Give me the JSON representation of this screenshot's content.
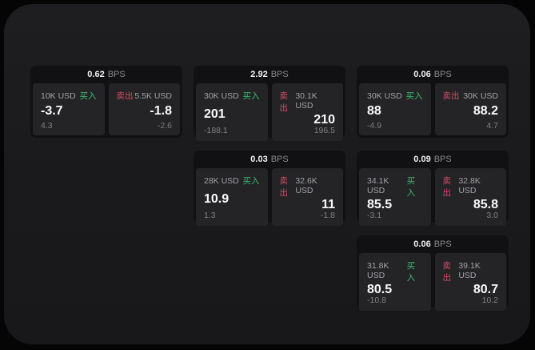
{
  "labels": {
    "bps_unit": "BPS",
    "buy": "买入",
    "sell": "卖出"
  },
  "colors": {
    "buy": "#3cba6e",
    "sell": "#d34c66",
    "window_bg": "#1b1b1d",
    "card_bg": "#111113",
    "panel_bg": "#242427"
  },
  "cards": [
    {
      "bps": "0.62",
      "buy": {
        "amount": "10K USD",
        "value": "-3.7",
        "sub": "4.3"
      },
      "sell": {
        "amount": "5.5K USD",
        "value": "-1.8",
        "sub": "-2.6"
      }
    },
    {
      "bps": "2.92",
      "buy": {
        "amount": "30K USD",
        "value": "201",
        "sub": "-188.1"
      },
      "sell": {
        "amount": "30.1K USD",
        "value": "210",
        "sub": "196.5"
      }
    },
    {
      "bps": "0.06",
      "buy": {
        "amount": "30K USD",
        "value": "88",
        "sub": "-4.9"
      },
      "sell": {
        "amount": "30K USD",
        "value": "88.2",
        "sub": "4.7"
      }
    },
    {
      "bps": "0.03",
      "buy": {
        "amount": "28K USD",
        "value": "10.9",
        "sub": "1.3"
      },
      "sell": {
        "amount": "32.6K USD",
        "value": "11",
        "sub": "-1.8"
      }
    },
    {
      "bps": "0.09",
      "buy": {
        "amount": "34.1K USD",
        "value": "85.5",
        "sub": "-3.1"
      },
      "sell": {
        "amount": "32.8K USD",
        "value": "85.8",
        "sub": "3.0"
      }
    },
    {
      "bps": "0.06",
      "buy": {
        "amount": "31.8K USD",
        "value": "80.5",
        "sub": "-10.8"
      },
      "sell": {
        "amount": "39.1K USD",
        "value": "80.7",
        "sub": "10.2"
      }
    }
  ]
}
